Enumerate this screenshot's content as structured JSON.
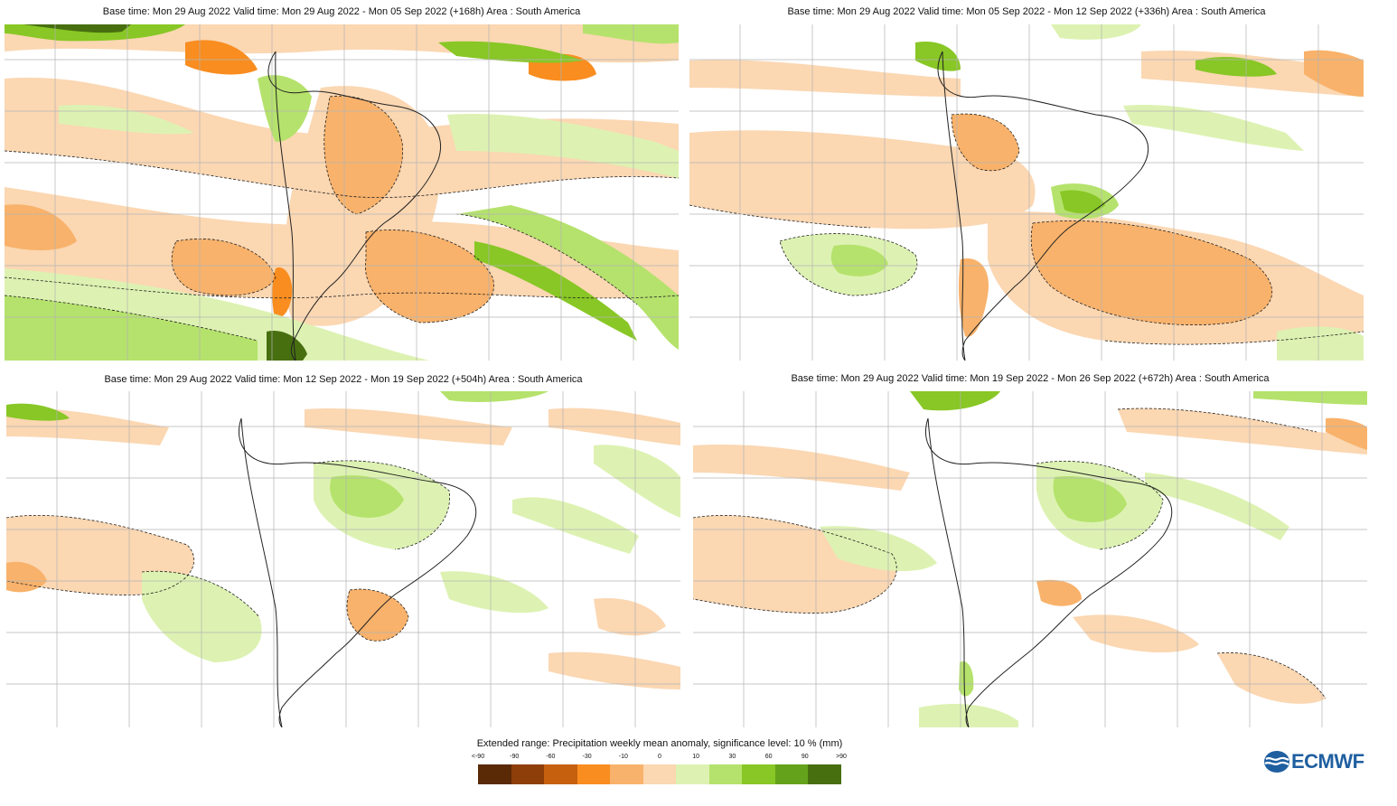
{
  "panels": [
    {
      "title": "Base time: Mon 29 Aug 2022 Valid time: Mon 29 Aug 2022 - Mon 05 Sep 2022 (+168h) Area : South America"
    },
    {
      "title": "Base time: Mon 29 Aug 2022 Valid time: Mon 05 Sep 2022 - Mon 12 Sep 2022 (+336h) Area : South America"
    },
    {
      "title": "Base time: Mon 29 Aug 2022 Valid time: Mon 12 Sep 2022 - Mon 19 Sep 2022 (+504h) Area : South America"
    },
    {
      "title": "Base time: Mon 29 Aug 2022 Valid time: Mon 19 Sep 2022 - Mon 26 Sep 2022 (+672h) Area : South America"
    }
  ],
  "legend": {
    "title": "Extended range: Precipitation weekly mean anomaly, significance level: 10 % (mm)",
    "ticks": [
      "<-90",
      "-90",
      "-60",
      "-30",
      "-10",
      "0",
      "10",
      "30",
      "60",
      "90",
      ">90"
    ],
    "colors": [
      "#5a2a06",
      "#8e3e08",
      "#c6600f",
      "#f98d1f",
      "#f8b26b",
      "#fbd7b2",
      "#ddf2b2",
      "#b5e26c",
      "#88c725",
      "#64a21b",
      "#476f10"
    ]
  },
  "logo": {
    "text": "ECMWF",
    "icon": "ecmwf-logo-icon",
    "color": "#1f5fa0"
  },
  "colors": {
    "dry_light": "#fbd7b2",
    "dry_mid": "#f8b26b",
    "dry_strong": "#f98d1f",
    "wet_light": "#ddf2b2",
    "wet_mid": "#b5e26c",
    "wet_strong": "#88c725",
    "wet_deep": "#64a21b",
    "grid": "#b4b4b4",
    "coast": "#222222"
  }
}
